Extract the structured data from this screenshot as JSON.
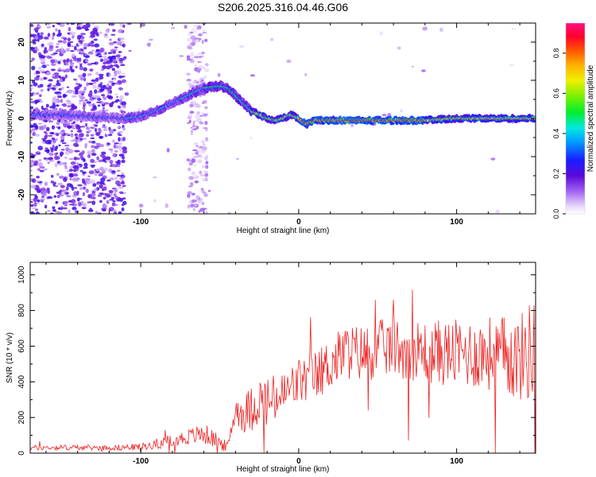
{
  "figure": {
    "title": "S206.2025.316.04.46.G06"
  },
  "chart_data": [
    {
      "type": "heatmap",
      "xlabel": "Height of straight line (km)",
      "ylabel": "Frequency (Hz)",
      "xlim": [
        -170,
        150
      ],
      "ylim": [
        -25,
        25
      ],
      "xticks": [
        -100,
        0,
        100
      ],
      "yticks": [
        -20,
        -10,
        0,
        10,
        20
      ],
      "trace": {
        "x": [
          -170,
          -150,
          -130,
          -110,
          -100,
          -90,
          -80,
          -70,
          -60,
          -50,
          -45,
          -40,
          -35,
          -30,
          -25,
          -20,
          -15,
          -10,
          -5,
          0,
          5,
          10,
          20,
          40,
          60,
          80,
          100,
          120,
          140,
          150
        ],
        "freq": [
          1,
          1,
          0.5,
          0,
          0.5,
          2,
          4,
          6,
          8,
          8.5,
          8,
          6,
          4,
          2,
          1,
          0,
          -0.5,
          0,
          1,
          0,
          -1.5,
          -0.5,
          -0.5,
          -0.5,
          -0.5,
          -0.5,
          0,
          0,
          0,
          0
        ]
      },
      "colorbar": {
        "label": "Normalized spectral amplitude",
        "ticks": [
          "0.0",
          "0.2",
          "0.4",
          "0.6",
          "0.8"
        ],
        "range": [
          0,
          0.95
        ]
      }
    },
    {
      "type": "line",
      "xlabel": "Height of straight line (km)",
      "ylabel": "SNR (10 * v/v)",
      "xlim": [
        -170,
        150
      ],
      "ylim": [
        0,
        1070
      ],
      "xticks": [
        -100,
        0,
        100
      ],
      "yticks": [
        0,
        200,
        400,
        600,
        800,
        1000
      ],
      "series": [
        {
          "name": "SNR",
          "color": "#ee2222",
          "x": [
            -170,
            -150,
            -120,
            -100,
            -90,
            -80,
            -70,
            -60,
            -50,
            -45,
            -40,
            -35,
            -30,
            -25,
            -20,
            -10,
            0,
            10,
            20,
            30,
            40,
            60,
            80,
            100,
            120,
            140,
            150
          ],
          "y": [
            30,
            32,
            30,
            35,
            50,
            70,
            90,
            110,
            60,
            30,
            250,
            220,
            250,
            300,
            280,
            320,
            400,
            430,
            500,
            570,
            560,
            600,
            570,
            560,
            560,
            530,
            600
          ],
          "noise_amplitude": [
            15,
            15,
            15,
            20,
            25,
            40,
            45,
            60,
            40,
            30,
            80,
            110,
            130,
            140,
            150,
            140,
            140,
            140,
            150,
            160,
            160,
            170,
            180,
            190,
            210,
            250,
            300
          ]
        }
      ]
    }
  ]
}
